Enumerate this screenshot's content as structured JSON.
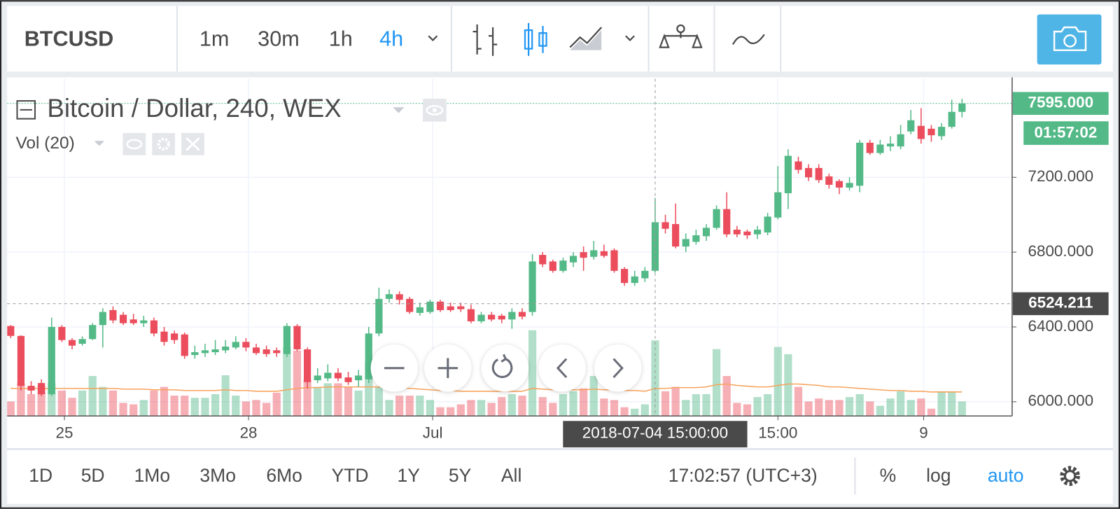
{
  "toolbar": {
    "symbol": "BTCUSD",
    "intervals": [
      "1m",
      "30m",
      "1h",
      "4h"
    ],
    "active_interval": 3
  },
  "legend": {
    "title": "Bitcoin / Dollar, 240, WEX",
    "volume": "Vol (20)"
  },
  "chart_data": {
    "type": "candlestick",
    "x": [
      "2018-06-24 03:00",
      "2018-06-24 07:00",
      "2018-06-24 11:00",
      "2018-06-24 15:00",
      "2018-06-24 19:00",
      "2018-06-24 23:00",
      "2018-06-25 03:00",
      "2018-06-25 07:00",
      "2018-06-25 11:00",
      "2018-06-25 15:00",
      "2018-06-25 19:00",
      "2018-06-25 23:00",
      "2018-06-26 03:00",
      "2018-06-26 07:00",
      "2018-06-26 11:00",
      "2018-06-26 15:00",
      "2018-06-26 19:00",
      "2018-06-26 23:00",
      "2018-06-27 03:00",
      "2018-06-27 07:00",
      "2018-06-27 11:00",
      "2018-06-27 15:00",
      "2018-06-27 19:00",
      "2018-06-27 23:00",
      "2018-06-28 03:00",
      "2018-06-28 07:00",
      "2018-06-28 11:00",
      "2018-06-28 15:00",
      "2018-06-28 19:00",
      "2018-06-28 23:00",
      "2018-06-29 03:00",
      "2018-06-29 07:00",
      "2018-06-29 11:00",
      "2018-06-29 15:00",
      "2018-06-29 19:00",
      "2018-06-29 23:00",
      "2018-06-30 03:00",
      "2018-06-30 07:00",
      "2018-06-30 11:00",
      "2018-06-30 15:00",
      "2018-06-30 19:00",
      "2018-06-30 23:00",
      "2018-07-01 03:00",
      "2018-07-01 07:00",
      "2018-07-01 11:00",
      "2018-07-01 15:00",
      "2018-07-01 19:00",
      "2018-07-01 23:00",
      "2018-07-02 03:00",
      "2018-07-02 07:00",
      "2018-07-02 11:00",
      "2018-07-02 15:00",
      "2018-07-02 19:00",
      "2018-07-02 23:00",
      "2018-07-03 03:00",
      "2018-07-03 07:00",
      "2018-07-03 11:00",
      "2018-07-03 15:00",
      "2018-07-03 19:00",
      "2018-07-03 23:00",
      "2018-07-04 03:00",
      "2018-07-04 07:00",
      "2018-07-04 11:00",
      "2018-07-04 15:00",
      "2018-07-04 19:00",
      "2018-07-04 23:00",
      "2018-07-05 03:00",
      "2018-07-05 07:00",
      "2018-07-05 11:00",
      "2018-07-05 15:00",
      "2018-07-05 19:00",
      "2018-07-05 23:00",
      "2018-07-06 03:00",
      "2018-07-06 07:00",
      "2018-07-06 11:00",
      "2018-07-06 15:00",
      "2018-07-06 19:00",
      "2018-07-06 23:00",
      "2018-07-07 03:00",
      "2018-07-07 07:00",
      "2018-07-07 11:00",
      "2018-07-07 15:00",
      "2018-07-07 19:00",
      "2018-07-07 23:00",
      "2018-07-08 03:00",
      "2018-07-08 07:00",
      "2018-07-08 11:00",
      "2018-07-08 15:00",
      "2018-07-08 19:00",
      "2018-07-08 23:00",
      "2018-07-09 03:00",
      "2018-07-09 07:00",
      "2018-07-09 11:00",
      "2018-07-09 15:00"
    ],
    "candles": [
      [
        6405,
        6410,
        6340,
        6352
      ],
      [
        6352,
        6355,
        6060,
        6085
      ],
      [
        6085,
        6110,
        6040,
        6060
      ],
      [
        6100,
        6120,
        6030,
        6040
      ],
      [
        6040,
        6450,
        6030,
        6400
      ],
      [
        6400,
        6410,
        6320,
        6330
      ],
      [
        6330,
        6340,
        6280,
        6300
      ],
      [
        6310,
        6350,
        6300,
        6335
      ],
      [
        6335,
        6420,
        6330,
        6410
      ],
      [
        6410,
        6500,
        6290,
        6480
      ],
      [
        6490,
        6510,
        6420,
        6435
      ],
      [
        6465,
        6480,
        6410,
        6420
      ],
      [
        6440,
        6470,
        6410,
        6420
      ],
      [
        6420,
        6460,
        6400,
        6435
      ],
      [
        6435,
        6450,
        6350,
        6365
      ],
      [
        6375,
        6400,
        6300,
        6320
      ],
      [
        6365,
        6380,
        6310,
        6330
      ],
      [
        6360,
        6370,
        6230,
        6245
      ],
      [
        6250,
        6300,
        6230,
        6265
      ],
      [
        6260,
        6310,
        6240,
        6275
      ],
      [
        6265,
        6330,
        6250,
        6280
      ],
      [
        6275,
        6330,
        6260,
        6295
      ],
      [
        6290,
        6350,
        6280,
        6320
      ],
      [
        6320,
        6340,
        6270,
        6290
      ],
      [
        6290,
        6310,
        6250,
        6260
      ],
      [
        6280,
        6300,
        6240,
        6255
      ],
      [
        6275,
        6290,
        6240,
        6260
      ],
      [
        6255,
        6420,
        6240,
        6405
      ],
      [
        6405,
        6415,
        6270,
        6280
      ],
      [
        6280,
        6290,
        6070,
        6105
      ],
      [
        6115,
        6180,
        6100,
        6140
      ],
      [
        6125,
        6200,
        6110,
        6155
      ],
      [
        6155,
        6180,
        6110,
        6125
      ],
      [
        6130,
        6160,
        6090,
        6105
      ],
      [
        6115,
        6170,
        6080,
        6140
      ],
      [
        6120,
        6400,
        6100,
        6365
      ],
      [
        6365,
        6610,
        6350,
        6550
      ],
      [
        6550,
        6600,
        6530,
        6575
      ],
      [
        6575,
        6590,
        6520,
        6545
      ],
      [
        6550,
        6560,
        6470,
        6480
      ],
      [
        6475,
        6530,
        6460,
        6505
      ],
      [
        6480,
        6545,
        6470,
        6535
      ],
      [
        6535,
        6545,
        6480,
        6490
      ],
      [
        6510,
        6530,
        6480,
        6490
      ],
      [
        6510,
        6530,
        6480,
        6495
      ],
      [
        6495,
        6520,
        6420,
        6430
      ],
      [
        6430,
        6480,
        6420,
        6465
      ],
      [
        6465,
        6480,
        6430,
        6440
      ],
      [
        6460,
        6470,
        6420,
        6440
      ],
      [
        6440,
        6500,
        6390,
        6480
      ],
      [
        6480,
        6500,
        6440,
        6455
      ],
      [
        6480,
        6790,
        6460,
        6750
      ],
      [
        6785,
        6800,
        6720,
        6735
      ],
      [
        6750,
        6760,
        6690,
        6700
      ],
      [
        6700,
        6770,
        6690,
        6755
      ],
      [
        6745,
        6800,
        6720,
        6780
      ],
      [
        6800,
        6830,
        6700,
        6770
      ],
      [
        6775,
        6860,
        6760,
        6810
      ],
      [
        6805,
        6840,
        6770,
        6780
      ],
      [
        6810,
        6820,
        6690,
        6700
      ],
      [
        6710,
        6720,
        6620,
        6635
      ],
      [
        6635,
        6700,
        6620,
        6670
      ],
      [
        6660,
        6720,
        6640,
        6700
      ],
      [
        6700,
        7090,
        6690,
        6960
      ],
      [
        6960,
        7000,
        6900,
        6925
      ],
      [
        6950,
        7060,
        6820,
        6830
      ],
      [
        6830,
        6900,
        6800,
        6870
      ],
      [
        6855,
        6920,
        6840,
        6890
      ],
      [
        6885,
        6950,
        6860,
        6930
      ],
      [
        6930,
        7050,
        6920,
        7030
      ],
      [
        7030,
        7120,
        6880,
        6895
      ],
      [
        6920,
        6940,
        6880,
        6895
      ],
      [
        6910,
        6920,
        6870,
        6890
      ],
      [
        6895,
        6940,
        6870,
        6920
      ],
      [
        6905,
        7010,
        6890,
        6990
      ],
      [
        6985,
        7260,
        6975,
        7120
      ],
      [
        7115,
        7350,
        7030,
        7315
      ],
      [
        7285,
        7310,
        7220,
        7240
      ],
      [
        7250,
        7270,
        7180,
        7200
      ],
      [
        7250,
        7270,
        7170,
        7185
      ],
      [
        7205,
        7220,
        7140,
        7160
      ],
      [
        7180,
        7190,
        7110,
        7145
      ],
      [
        7145,
        7200,
        7130,
        7170
      ],
      [
        7155,
        7400,
        7120,
        7385
      ],
      [
        7385,
        7400,
        7320,
        7330
      ],
      [
        7330,
        7400,
        7320,
        7375
      ],
      [
        7365,
        7420,
        7340,
        7380
      ],
      [
        7365,
        7480,
        7350,
        7430
      ],
      [
        7445,
        7560,
        7430,
        7505
      ],
      [
        7475,
        7570,
        7380,
        7405
      ],
      [
        7460,
        7480,
        7390,
        7425
      ],
      [
        7420,
        7490,
        7400,
        7470
      ],
      [
        7470,
        7615,
        7460,
        7550
      ],
      [
        7550,
        7620,
        7520,
        7595
      ]
    ],
    "volume": [
      20,
      45,
      30,
      42,
      45,
      35,
      25,
      35,
      55,
      40,
      35,
      18,
      16,
      22,
      35,
      40,
      28,
      28,
      25,
      25,
      30,
      56,
      28,
      20,
      22,
      18,
      32,
      95,
      90,
      50,
      40,
      45,
      45,
      40,
      35,
      75,
      40,
      22,
      28,
      28,
      28,
      22,
      12,
      12,
      16,
      22,
      22,
      18,
      26,
      30,
      28,
      118,
      26,
      18,
      30,
      34,
      38,
      55,
      24,
      22,
      12,
      10,
      16,
      104,
      34,
      40,
      22,
      30,
      30,
      92,
      55,
      18,
      16,
      26,
      30,
      95,
      85,
      40,
      20,
      24,
      22,
      22,
      26,
      30,
      20,
      14,
      24,
      34,
      22,
      24,
      10,
      34,
      34,
      20
    ],
    "volume_ma": [
      38,
      38,
      38,
      38,
      38,
      38,
      38,
      38,
      38,
      38,
      38,
      37,
      37,
      37,
      36,
      36,
      36,
      35,
      35,
      35,
      35,
      36,
      35,
      35,
      34,
      34,
      34,
      36,
      38,
      39,
      39,
      40,
      40,
      40,
      40,
      40,
      40,
      39,
      39,
      38,
      37,
      36,
      35,
      35,
      34,
      34,
      34,
      34,
      34,
      34,
      34,
      38,
      37,
      36,
      36,
      36,
      36,
      37,
      36,
      36,
      35,
      35,
      34,
      38,
      38,
      39,
      39,
      39,
      40,
      43,
      44,
      42,
      41,
      40,
      40,
      42,
      44,
      44,
      43,
      42,
      40,
      40,
      39,
      38,
      37,
      36,
      35,
      35,
      34,
      34,
      33,
      33,
      33,
      33
    ],
    "up_color": "#53b987",
    "down_color": "#eb4d5c",
    "ma_color": "#f7a35c",
    "ylim": [
      5924,
      7727
    ],
    "yticks": [
      {
        "value": 6000,
        "label": "6000.000"
      },
      {
        "value": 6400,
        "label": "6400.000"
      },
      {
        "value": 6800,
        "label": "6800.000"
      },
      {
        "value": 7200,
        "label": "7200.000"
      }
    ],
    "xlim": [
      "2018-06-24 01:36",
      "2018-07-10 10:36"
    ],
    "xticks": [
      {
        "value": "2018-06-25 00:00",
        "label": "25"
      },
      {
        "value": "2018-06-28 00:00",
        "label": "28"
      },
      {
        "value": "2018-07-01 00:00",
        "label": "Jul"
      },
      {
        "value": "2018-07-06 15:00",
        "label": "15:00"
      },
      {
        "value": "2018-07-09 00:00",
        "label": "9"
      }
    ],
    "grid": true,
    "last_price": {
      "value": 7595,
      "label": "7595.000"
    },
    "countdown": "01:57:02",
    "crosshair_price": 6524.211,
    "crosshair_time": "2018-07-04 15:00:00"
  },
  "footer": {
    "ranges": [
      "1D",
      "5D",
      "1Mo",
      "3Mo",
      "6Mo",
      "YTD",
      "1Y",
      "5Y",
      "All"
    ],
    "clock": "17:02:57 (UTC+3)",
    "percent": "%",
    "log": "log",
    "auto": "auto"
  }
}
